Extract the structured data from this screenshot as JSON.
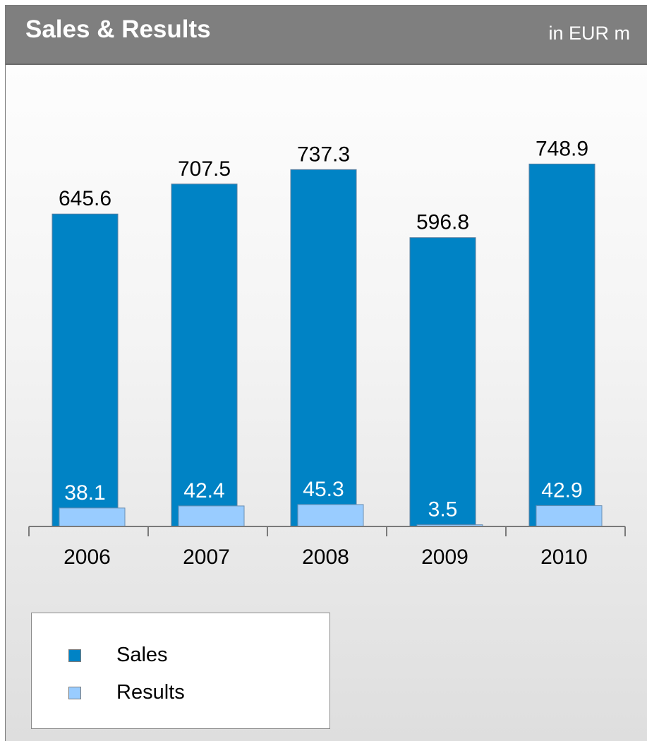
{
  "header": {
    "title": "Sales & Results",
    "unit": "in EUR m"
  },
  "colors": {
    "sales": "#0083c5",
    "results": "#99ccff",
    "header_bg": "#7f7f7f"
  },
  "chart_data": {
    "type": "bar",
    "title": "Sales & Results",
    "subtitle": "in EUR m",
    "categories": [
      "2006",
      "2007",
      "2008",
      "2009",
      "2010"
    ],
    "series": [
      {
        "name": "Sales",
        "values": [
          645.6,
          707.5,
          737.3,
          596.8,
          748.9
        ]
      },
      {
        "name": "Results",
        "values": [
          38.1,
          42.4,
          45.3,
          3.5,
          42.9
        ]
      }
    ],
    "value_labels": {
      "Sales": [
        "645.6",
        "707.5",
        "737.3",
        "596.8",
        "748.9"
      ],
      "Results": [
        "38.1",
        "42.4",
        "45.3",
        "3.5",
        "42.9"
      ]
    },
    "xlabel": "",
    "ylabel": "",
    "ylim": [
      0,
      800
    ],
    "grid": false,
    "legend": "bottom-left"
  },
  "legend": {
    "items": [
      {
        "label": "Sales",
        "color": "#0083c5"
      },
      {
        "label": "Results",
        "color": "#99ccff"
      }
    ]
  }
}
